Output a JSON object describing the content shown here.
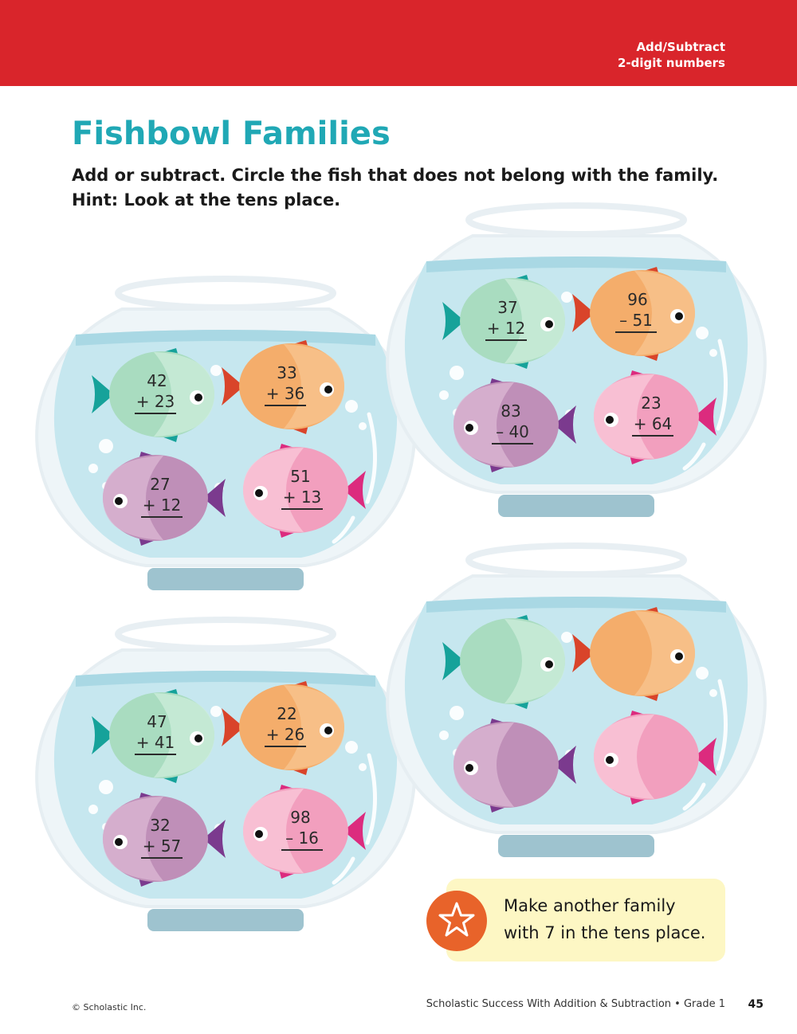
{
  "header": {
    "topic_line1": "Add/Subtract",
    "topic_line2": "2-digit numbers",
    "banner_color": "#d9252b"
  },
  "title": "Fishbowl Families",
  "instructions": {
    "line1": "Add or subtract. Circle the fish that does not belong with the family.",
    "line2": "Hint: Look at the tens place."
  },
  "bowls": [
    {
      "name": "bowl-1",
      "fish": [
        {
          "color": "green",
          "top": "42",
          "bottom": "+ 23"
        },
        {
          "color": "orange",
          "top": "33",
          "bottom": "+ 36"
        },
        {
          "color": "purple",
          "top": "27",
          "bottom": "+ 12"
        },
        {
          "color": "pink",
          "top": "51",
          "bottom": "+ 13"
        }
      ]
    },
    {
      "name": "bowl-2",
      "fish": [
        {
          "color": "green",
          "top": "37",
          "bottom": "+ 12"
        },
        {
          "color": "orange",
          "top": "96",
          "bottom": "– 51"
        },
        {
          "color": "purple",
          "top": "83",
          "bottom": "– 40"
        },
        {
          "color": "pink",
          "top": "23",
          "bottom": "+ 64"
        }
      ]
    },
    {
      "name": "bowl-3",
      "fish": [
        {
          "color": "green",
          "top": "47",
          "bottom": "+ 41"
        },
        {
          "color": "orange",
          "top": "22",
          "bottom": "+ 26"
        },
        {
          "color": "purple",
          "top": "32",
          "bottom": "+ 57"
        },
        {
          "color": "pink",
          "top": "98",
          "bottom": "– 16"
        }
      ]
    },
    {
      "name": "bowl-4",
      "fish": [
        {
          "color": "green",
          "top": "",
          "bottom": ""
        },
        {
          "color": "orange",
          "top": "",
          "bottom": ""
        },
        {
          "color": "purple",
          "top": "",
          "bottom": ""
        },
        {
          "color": "pink",
          "top": "",
          "bottom": ""
        }
      ]
    }
  ],
  "callout": {
    "icon": "star-icon",
    "line1": "Make another family",
    "line2": "with 7 in the tens place."
  },
  "footer": {
    "copyright": "© Scholastic Inc.",
    "book": "Scholastic Success With Addition & Subtraction • Grade 1",
    "page": "45"
  },
  "colors": {
    "title": "#20a8b5",
    "water": "#c6e7ef",
    "glass": "#eef5f8",
    "stand": "#9ec3cf",
    "star_badge": "#e8632a",
    "callout_bg": "#fdf7c4"
  }
}
